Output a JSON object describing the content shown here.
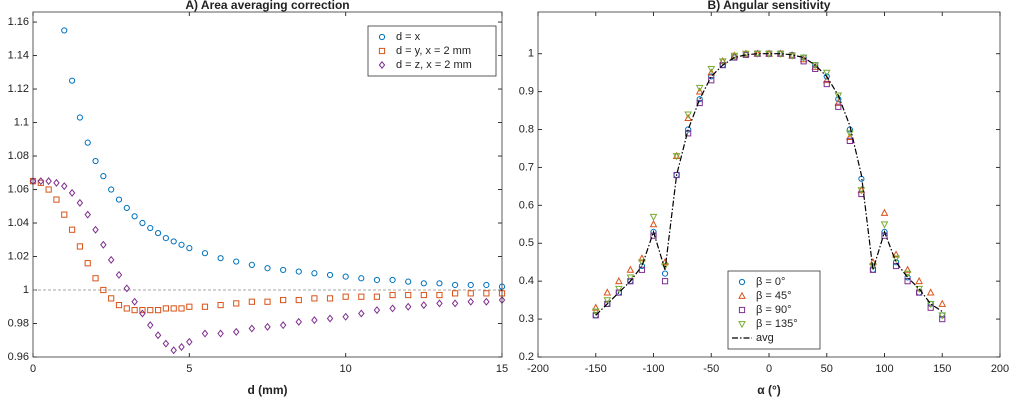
{
  "chart_data": [
    {
      "type": "scatter",
      "title": "A) Area averaging correction",
      "xlabel": "d (mm)",
      "x": [
        0,
        0.25,
        0.5,
        0.75,
        1,
        1.25,
        1.5,
        1.75,
        2,
        2.25,
        2.5,
        2.75,
        3,
        3.25,
        3.5,
        3.75,
        4,
        4.25,
        4.5,
        4.75,
        5,
        5.5,
        6,
        6.5,
        7,
        7.5,
        8,
        8.5,
        9,
        9.5,
        10,
        10.5,
        11,
        11.5,
        12,
        12.5,
        13,
        13.5,
        14,
        14.5,
        15
      ],
      "series": [
        {
          "name": "d = x",
          "color": "#0072bd",
          "marker": "circle",
          "values": [
            null,
            null,
            null,
            null,
            1.155,
            1.125,
            1.103,
            1.088,
            1.077,
            1.068,
            1.06,
            1.054,
            1.049,
            1.044,
            1.04,
            1.037,
            1.034,
            1.031,
            1.029,
            1.027,
            1.025,
            1.022,
            1.019,
            1.017,
            1.015,
            1.013,
            1.012,
            1.011,
            1.01,
            1.009,
            1.008,
            1.007,
            1.006,
            1.006,
            1.005,
            1.004,
            1.004,
            1.003,
            1.003,
            1.003,
            1.002
          ]
        },
        {
          "name": "d = y, x = 2 mm",
          "color": "#d95319",
          "marker": "square",
          "values": [
            1.065,
            1.064,
            1.06,
            1.054,
            1.045,
            1.036,
            1.026,
            1.016,
            1.007,
            1.0,
            0.995,
            0.991,
            0.989,
            0.988,
            0.988,
            0.988,
            0.988,
            0.989,
            0.989,
            0.989,
            0.99,
            0.99,
            0.991,
            0.992,
            0.993,
            0.993,
            0.994,
            0.994,
            0.995,
            0.995,
            0.996,
            0.996,
            0.996,
            0.997,
            0.997,
            0.997,
            0.997,
            0.998,
            0.998,
            0.998,
            0.998
          ]
        },
        {
          "name": "d = z, x = 2 mm",
          "color": "#7e2f8e",
          "marker": "diamond",
          "values": [
            1.065,
            1.065,
            1.065,
            1.064,
            1.062,
            1.058,
            1.052,
            1.045,
            1.036,
            1.027,
            1.018,
            1.009,
            1.001,
            0.993,
            0.986,
            0.979,
            0.973,
            0.968,
            0.964,
            0.966,
            0.969,
            0.974,
            0.974,
            0.975,
            0.977,
            0.978,
            0.979,
            0.981,
            0.982,
            0.983,
            0.984,
            0.986,
            0.988,
            0.989,
            0.99,
            0.991,
            0.992,
            0.992,
            0.993,
            0.993,
            0.994
          ]
        }
      ],
      "hline": 1,
      "xlim": [
        0,
        15
      ],
      "xticks": [
        0,
        5,
        10,
        15
      ],
      "ylim": [
        0.96,
        1.166
      ],
      "yticks": [
        0.96,
        0.98,
        1,
        1.02,
        1.04,
        1.06,
        1.08,
        1.1,
        1.12,
        1.14,
        1.16
      ],
      "legend": "upper right"
    },
    {
      "type": "scatter",
      "title": "B) Angular sensitivity",
      "xlabel": "α (°)",
      "x": [
        -150,
        -140,
        -130,
        -120,
        -110,
        -100,
        -90,
        -80,
        -70,
        -60,
        -50,
        -40,
        -30,
        -20,
        -10,
        0,
        10,
        20,
        30,
        40,
        50,
        60,
        70,
        80,
        90,
        100,
        110,
        120,
        130,
        140,
        150
      ],
      "series": [
        {
          "name": "β = 0°",
          "color": "#0072bd",
          "marker": "circle",
          "values": [
            0.31,
            0.34,
            0.37,
            0.4,
            0.44,
            0.53,
            0.42,
            0.68,
            0.8,
            0.88,
            0.94,
            0.97,
            0.99,
            0.997,
            1,
            1,
            1,
            0.997,
            0.99,
            0.97,
            0.94,
            0.88,
            0.8,
            0.67,
            0.43,
            0.53,
            0.45,
            0.41,
            0.37,
            0.34,
            0.31
          ]
        },
        {
          "name": "β = 45°",
          "color": "#d95319",
          "marker": "triangle-up",
          "values": [
            0.33,
            0.37,
            0.4,
            0.43,
            0.46,
            0.55,
            0.45,
            0.73,
            0.83,
            0.9,
            0.95,
            0.98,
            0.995,
            1,
            1,
            1,
            1,
            0.995,
            0.985,
            0.965,
            0.93,
            0.87,
            0.78,
            0.64,
            0.45,
            0.58,
            0.47,
            0.43,
            0.4,
            0.37,
            0.34
          ]
        },
        {
          "name": "β = 90°",
          "color": "#7e2f8e",
          "marker": "square",
          "values": [
            0.31,
            0.34,
            0.37,
            0.4,
            0.43,
            0.52,
            0.4,
            0.68,
            0.79,
            0.87,
            0.93,
            0.97,
            0.99,
            0.997,
            1,
            1,
            1,
            0.995,
            0.98,
            0.96,
            0.92,
            0.86,
            0.77,
            0.63,
            0.43,
            0.52,
            0.44,
            0.4,
            0.37,
            0.33,
            0.3
          ]
        },
        {
          "name": "β = 135°",
          "color": "#77ac30",
          "marker": "triangle-down",
          "values": [
            0.32,
            0.35,
            0.38,
            0.41,
            0.45,
            0.57,
            0.44,
            0.73,
            0.84,
            0.91,
            0.96,
            0.98,
            0.995,
            1,
            1,
            1,
            1,
            0.995,
            0.99,
            0.97,
            0.95,
            0.89,
            0.79,
            0.64,
            0.44,
            0.55,
            0.46,
            0.42,
            0.38,
            0.34,
            0.31
          ]
        },
        {
          "name": "avg",
          "color": "#000000",
          "marker": "dashdot",
          "values": [
            0.31,
            0.34,
            0.37,
            0.4,
            0.44,
            0.53,
            0.43,
            0.68,
            0.8,
            0.88,
            0.94,
            0.97,
            0.99,
            0.997,
            1,
            1,
            1,
            0.997,
            0.99,
            0.97,
            0.94,
            0.89,
            0.81,
            0.68,
            0.43,
            0.53,
            0.45,
            0.41,
            0.38,
            0.34,
            0.32
          ]
        }
      ],
      "xlim": [
        -200,
        200
      ],
      "xticks": [
        -200,
        -150,
        -100,
        -50,
        0,
        50,
        100,
        150,
        200
      ],
      "ylim": [
        0.2,
        1.11
      ],
      "yticks": [
        0.2,
        0.3,
        0.4,
        0.5,
        0.6,
        0.7,
        0.8,
        0.9,
        1
      ],
      "legend": "lower center"
    }
  ]
}
